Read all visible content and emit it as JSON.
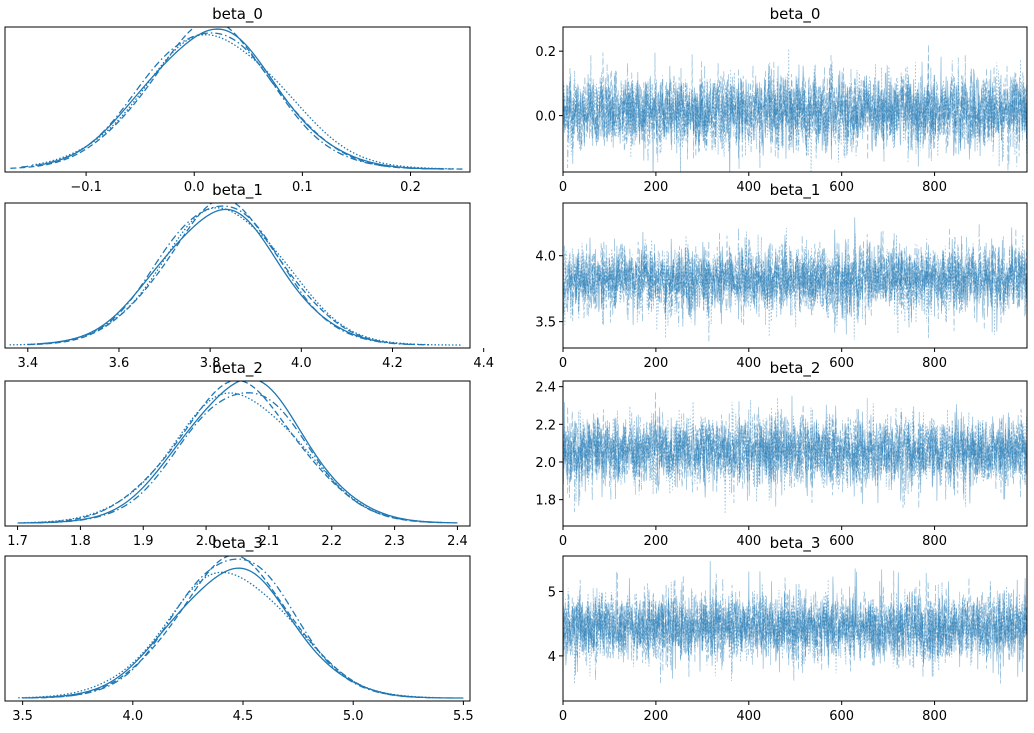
{
  "colors": {
    "line": "#1f77b4"
  },
  "chart_data": [
    {
      "type": "line",
      "variant": "density",
      "title": "beta_0",
      "xlim": [
        -0.175,
        0.255
      ],
      "ylim": [
        0,
        1
      ],
      "xticks": [
        -0.1,
        0.0,
        0.1,
        0.2
      ],
      "xtick_labels": [
        "−0.1",
        "0.0",
        "0.1",
        "0.2"
      ],
      "mean": 0.015,
      "sd": 0.06,
      "support": [
        -0.17,
        0.255
      ],
      "series": [
        {
          "style": "solid",
          "peak": 0.96,
          "mean": 0.015,
          "sd": 0.06,
          "range": [
            -0.14,
            0.23
          ]
        },
        {
          "style": "dashed",
          "peak": 0.99,
          "mean": 0.016,
          "sd": 0.058,
          "range": [
            -0.17,
            0.25
          ]
        },
        {
          "style": "dotted",
          "peak": 0.93,
          "mean": 0.018,
          "sd": 0.063,
          "range": [
            -0.15,
            0.24
          ]
        },
        {
          "style": "dashdot",
          "peak": 0.97,
          "mean": 0.012,
          "sd": 0.059,
          "range": [
            -0.16,
            0.23
          ]
        }
      ]
    },
    {
      "type": "line",
      "variant": "trace",
      "title": "beta_0",
      "xlim": [
        0,
        999
      ],
      "ylim": [
        -0.175,
        0.275
      ],
      "xticks": [
        0,
        200,
        400,
        600,
        800
      ],
      "xtick_labels": [
        "0",
        "200",
        "400",
        "600",
        "800"
      ],
      "yticks": [
        0.0,
        0.2
      ],
      "ytick_labels": [
        "0.0",
        "0.2"
      ],
      "mean": 0.015,
      "sd": 0.06,
      "draws": 1000,
      "chains": 4
    },
    {
      "type": "line",
      "variant": "density",
      "title": "beta_1",
      "xlim": [
        3.35,
        4.37
      ],
      "ylim": [
        0,
        1
      ],
      "xticks": [
        3.4,
        3.6,
        3.8,
        4.0,
        4.2,
        4.4
      ],
      "xtick_labels": [
        "3.4",
        "3.6",
        "3.8",
        "4.0",
        "4.2",
        "4.4"
      ],
      "mean": 3.82,
      "sd": 0.13,
      "series": [
        {
          "style": "solid",
          "peak": 0.93,
          "mean": 3.82,
          "sd": 0.13,
          "range": [
            3.42,
            4.18
          ]
        },
        {
          "style": "dashed",
          "peak": 0.97,
          "mean": 3.83,
          "sd": 0.128,
          "range": [
            3.4,
            4.28
          ]
        },
        {
          "style": "dotted",
          "peak": 0.95,
          "mean": 3.83,
          "sd": 0.132,
          "range": [
            3.36,
            4.35
          ]
        },
        {
          "style": "dashdot",
          "peak": 0.99,
          "mean": 3.82,
          "sd": 0.127,
          "range": [
            3.4,
            4.24
          ]
        }
      ]
    },
    {
      "type": "line",
      "variant": "trace",
      "title": "beta_1",
      "xlim": [
        0,
        999
      ],
      "ylim": [
        3.3,
        4.4
      ],
      "xticks": [
        0,
        200,
        400,
        600,
        800
      ],
      "xtick_labels": [
        "0",
        "200",
        "400",
        "600",
        "800"
      ],
      "yticks": [
        3.5,
        4.0
      ],
      "ytick_labels": [
        "3.5",
        "4.0"
      ],
      "mean": 3.82,
      "sd": 0.13,
      "draws": 1000,
      "chains": 4
    },
    {
      "type": "line",
      "variant": "density",
      "title": "beta_2",
      "xlim": [
        1.68,
        2.42
      ],
      "ylim": [
        0,
        1
      ],
      "xticks": [
        1.7,
        1.8,
        1.9,
        2.0,
        2.1,
        2.2,
        2.3,
        2.4
      ],
      "xtick_labels": [
        "1.7",
        "1.8",
        "1.9",
        "2.0",
        "2.1",
        "2.2",
        "2.3",
        "2.4"
      ],
      "mean": 2.06,
      "sd": 0.095,
      "series": [
        {
          "style": "solid",
          "peak": 0.99,
          "mean": 2.06,
          "sd": 0.095,
          "range": [
            1.7,
            2.4
          ]
        },
        {
          "style": "dashed",
          "peak": 0.95,
          "mean": 2.05,
          "sd": 0.097,
          "range": [
            1.72,
            2.38
          ]
        },
        {
          "style": "dotted",
          "peak": 0.9,
          "mean": 2.05,
          "sd": 0.1,
          "range": [
            1.71,
            2.39
          ]
        },
        {
          "style": "dashdot",
          "peak": 0.93,
          "mean": 2.06,
          "sd": 0.094,
          "range": [
            1.73,
            2.36
          ]
        }
      ]
    },
    {
      "type": "line",
      "variant": "trace",
      "title": "beta_2",
      "xlim": [
        0,
        999
      ],
      "ylim": [
        1.66,
        2.43
      ],
      "xticks": [
        0,
        200,
        400,
        600,
        800
      ],
      "xtick_labels": [
        "0",
        "200",
        "400",
        "600",
        "800"
      ],
      "yticks": [
        1.8,
        2.0,
        2.2,
        2.4
      ],
      "ytick_labels": [
        "1.8",
        "2.0",
        "2.2",
        "2.4"
      ],
      "mean": 2.06,
      "sd": 0.095,
      "draws": 1000,
      "chains": 4
    },
    {
      "type": "line",
      "variant": "density",
      "title": "beta_3",
      "xlim": [
        3.42,
        5.53
      ],
      "ylim": [
        0,
        1
      ],
      "xticks": [
        3.5,
        4.0,
        4.5,
        5.0,
        5.5
      ],
      "xtick_labels": [
        "3.5",
        "4.0",
        "4.5",
        "5.0",
        "5.5"
      ],
      "mean": 4.45,
      "sd": 0.27,
      "series": [
        {
          "style": "solid",
          "peak": 0.89,
          "mean": 4.45,
          "sd": 0.27,
          "range": [
            3.55,
            5.5
          ]
        },
        {
          "style": "dashed",
          "peak": 0.95,
          "mean": 4.46,
          "sd": 0.262,
          "range": [
            3.5,
            5.35
          ]
        },
        {
          "style": "dotted",
          "peak": 0.87,
          "mean": 4.44,
          "sd": 0.28,
          "range": [
            3.48,
            5.4
          ]
        },
        {
          "style": "dashdot",
          "peak": 0.99,
          "mean": 4.46,
          "sd": 0.258,
          "range": [
            3.52,
            5.3
          ]
        }
      ]
    },
    {
      "type": "line",
      "variant": "trace",
      "title": "beta_3",
      "xlim": [
        0,
        999
      ],
      "ylim": [
        3.3,
        5.55
      ],
      "xticks": [
        0,
        200,
        400,
        600,
        800
      ],
      "xtick_labels": [
        "0",
        "200",
        "400",
        "600",
        "800"
      ],
      "yticks": [
        4,
        5
      ],
      "ytick_labels": [
        "4",
        "5"
      ],
      "mean": 4.45,
      "sd": 0.27,
      "draws": 1000,
      "chains": 4
    }
  ]
}
